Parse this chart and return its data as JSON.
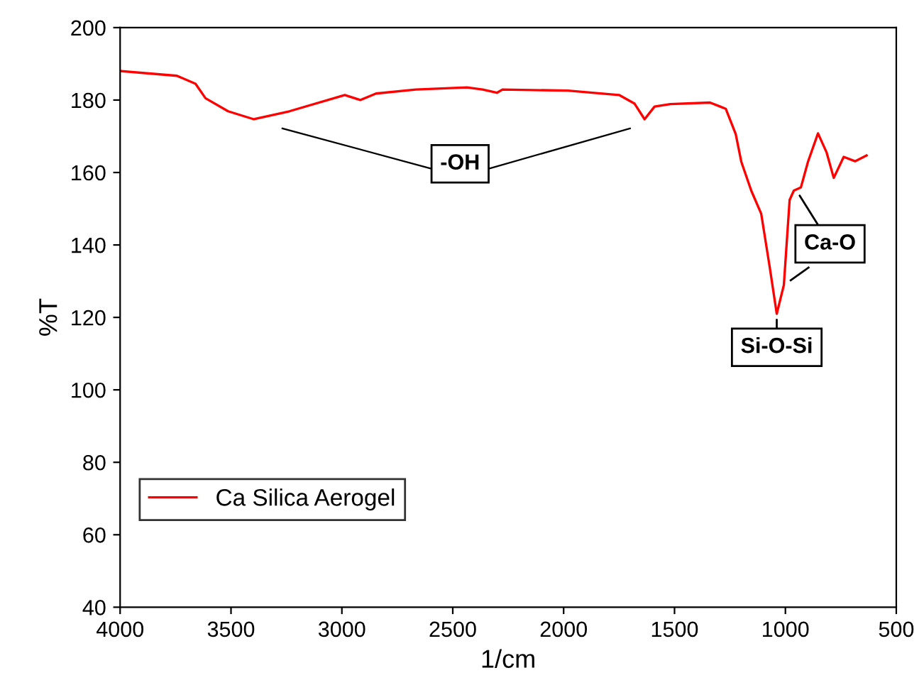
{
  "chart_data": {
    "type": "line",
    "xlabel": "1/cm",
    "ylabel": "%T",
    "xlim": [
      4000,
      500
    ],
    "ylim": [
      40,
      200
    ],
    "xticks": [
      4000,
      3500,
      3000,
      2500,
      2000,
      1500,
      1000,
      500
    ],
    "yticks": [
      40,
      60,
      80,
      100,
      120,
      140,
      160,
      180,
      200
    ],
    "grid": false,
    "legend": "bottom left",
    "marker": "none",
    "line_style": "solid",
    "series": [
      {
        "name": "Ca Silica Aerogel",
        "color": "#ff0000",
        "x": [
          3994,
          3744,
          3660,
          3615,
          3513,
          3397,
          3237,
          2987,
          2917,
          2846,
          2667,
          2436,
          2365,
          2301,
          2276,
          1981,
          1750,
          1680,
          1635,
          1590,
          1519,
          1340,
          1269,
          1224,
          1199,
          1154,
          1109,
          1071,
          1039,
          1007,
          981,
          962,
          930,
          898,
          853,
          814,
          782,
          737,
          686,
          634
        ],
        "values": [
          188,
          186.7,
          184.5,
          180.5,
          176.9,
          174.7,
          176.9,
          181.4,
          180,
          181.8,
          182.9,
          183.5,
          182.9,
          182,
          182.9,
          182.6,
          181.4,
          179,
          174.7,
          178.2,
          178.9,
          179.3,
          177.6,
          170.6,
          163,
          155,
          148.6,
          134,
          121,
          128.9,
          152.4,
          155,
          155.9,
          163,
          170.8,
          165.5,
          158.5,
          164.3,
          163.1,
          164.7
        ]
      }
    ],
    "annotations": [
      "-OH",
      {
        "text": "Si-O-Si",
        "x": 1039,
        "y": 121
      },
      {
        "text": "Ca-O",
        "x": 950,
        "y": 155
      }
    ]
  }
}
